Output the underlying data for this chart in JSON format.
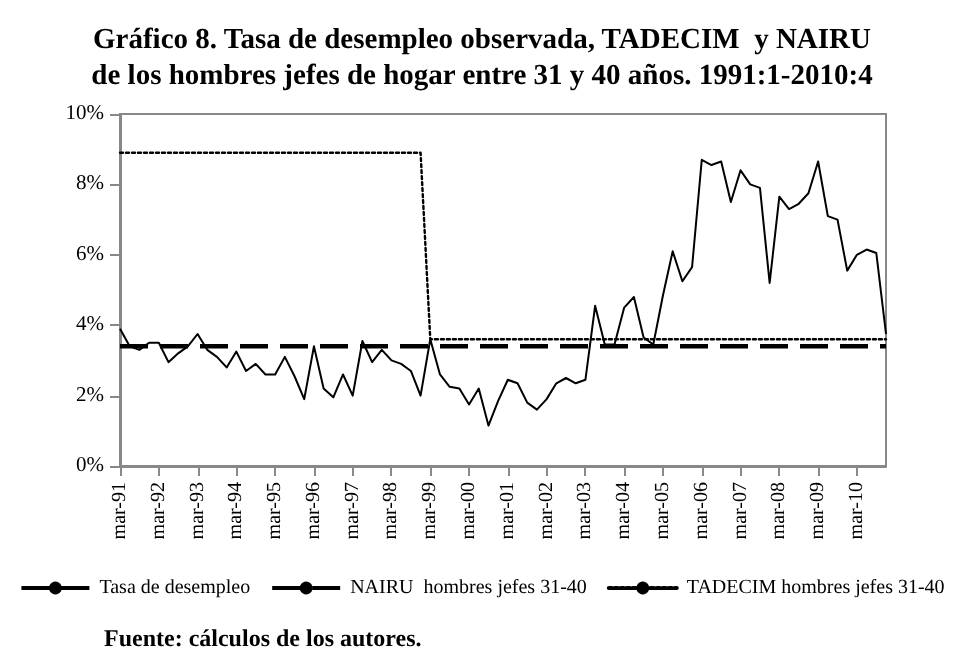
{
  "chart_data": {
    "type": "line",
    "title": "Gráfico 8. Tasa de desempleo observada, TADECIM  y NAIRU\nde los hombres jefes de hogar entre 31 y 40 años. 1991:1-2010:4",
    "categories": [
      "mar-91",
      null,
      null,
      null,
      "mar-92",
      null,
      null,
      null,
      "mar-93",
      null,
      null,
      null,
      "mar-94",
      null,
      null,
      null,
      "mar-95",
      null,
      null,
      null,
      "mar-96",
      null,
      null,
      null,
      "mar-97",
      null,
      null,
      null,
      "mar-98",
      null,
      null,
      null,
      "mar-99",
      null,
      null,
      null,
      "mar-00",
      null,
      null,
      null,
      "mar-01",
      null,
      null,
      null,
      "mar-02",
      null,
      null,
      null,
      "mar-03",
      null,
      null,
      null,
      "mar-04",
      null,
      null,
      null,
      "mar-05",
      null,
      null,
      null,
      "mar-06",
      null,
      null,
      null,
      "mar-07",
      null,
      null,
      null,
      "mar-08",
      null,
      null,
      null,
      "mar-09",
      null,
      null,
      null,
      "mar-10",
      null,
      null,
      null
    ],
    "series": [
      {
        "name": "Tasa de desempleo",
        "color": "#000000",
        "line_style": "solid",
        "values": [
          3.9,
          3.4,
          3.3,
          3.5,
          3.5,
          2.95,
          3.2,
          3.4,
          3.75,
          3.3,
          3.1,
          2.8,
          3.25,
          2.7,
          2.9,
          2.6,
          2.6,
          3.1,
          2.55,
          1.9,
          3.4,
          2.2,
          1.95,
          2.6,
          2.0,
          3.55,
          2.95,
          3.3,
          3.0,
          2.9,
          2.7,
          2.0,
          3.6,
          2.6,
          2.25,
          2.2,
          1.75,
          2.2,
          1.15,
          1.85,
          2.45,
          2.35,
          1.8,
          1.6,
          1.9,
          2.35,
          2.5,
          2.35,
          2.45,
          4.55,
          3.45,
          3.45,
          4.5,
          4.8,
          3.65,
          3.45,
          4.85,
          6.1,
          5.25,
          5.65,
          8.7,
          8.55,
          8.65,
          7.5,
          8.4,
          8.0,
          7.9,
          5.2,
          7.65,
          7.3,
          7.45,
          7.75,
          8.65,
          7.1,
          7.0,
          5.55,
          6.0,
          6.15,
          6.05,
          3.75
        ]
      },
      {
        "name": "NAIRU  hombres jefes 31-40",
        "color": "#000000",
        "line_style": "dashed",
        "values": [
          3.4,
          3.4,
          3.4,
          3.4,
          3.4,
          3.4,
          3.4,
          3.4,
          3.4,
          3.4,
          3.4,
          3.4,
          3.4,
          3.4,
          3.4,
          3.4,
          3.4,
          3.4,
          3.4,
          3.4,
          3.4,
          3.4,
          3.4,
          3.4,
          3.4,
          3.4,
          3.4,
          3.4,
          3.4,
          3.4,
          3.4,
          3.4,
          3.4,
          3.4,
          3.4,
          3.4,
          3.4,
          3.4,
          3.4,
          3.4,
          3.4,
          3.4,
          3.4,
          3.4,
          3.4,
          3.4,
          3.4,
          3.4,
          3.4,
          3.4,
          3.4,
          3.4,
          3.4,
          3.4,
          3.4,
          3.4,
          3.4,
          3.4,
          3.4,
          3.4,
          3.4,
          3.4,
          3.4,
          3.4,
          3.4,
          3.4,
          3.4,
          3.4,
          3.4,
          3.4,
          3.4,
          3.4,
          3.4,
          3.4,
          3.4,
          3.4,
          3.4,
          3.4,
          3.4,
          3.4
        ]
      },
      {
        "name": "TADECIM hombres jefes 31-40",
        "color": "#000000",
        "line_style": "dotted",
        "values": [
          8.9,
          8.9,
          8.9,
          8.9,
          8.9,
          8.9,
          8.9,
          8.9,
          8.9,
          8.9,
          8.9,
          8.9,
          8.9,
          8.9,
          8.9,
          8.9,
          8.9,
          8.9,
          8.9,
          8.9,
          8.9,
          8.9,
          8.9,
          8.9,
          8.9,
          8.9,
          8.9,
          8.9,
          8.9,
          8.9,
          8.9,
          8.9,
          3.6,
          3.6,
          3.6,
          3.6,
          3.6,
          3.6,
          3.6,
          3.6,
          3.6,
          3.6,
          3.6,
          3.6,
          3.6,
          3.6,
          3.6,
          3.6,
          3.6,
          3.6,
          3.6,
          3.6,
          3.6,
          3.6,
          3.6,
          3.6,
          3.6,
          3.6,
          3.6,
          3.6,
          3.6,
          3.6,
          3.6,
          3.6,
          3.6,
          3.6,
          3.6,
          3.6,
          3.6,
          3.6,
          3.6,
          3.6,
          3.6,
          3.6,
          3.6,
          3.6,
          3.6,
          3.6,
          3.6,
          3.6
        ]
      }
    ],
    "ylim": [
      0,
      10
    ],
    "yticks": [
      {
        "value": 0,
        "label": "0%"
      },
      {
        "value": 2,
        "label": "2%"
      },
      {
        "value": 4,
        "label": "4%"
      },
      {
        "value": 6,
        "label": "6%"
      },
      {
        "value": 8,
        "label": "8%"
      },
      {
        "value": 10,
        "label": "10%"
      }
    ],
    "grid": false,
    "legend": "bottom",
    "marker": "none",
    "annotations": [
      "Fuente: cálculos de los autores."
    ]
  }
}
